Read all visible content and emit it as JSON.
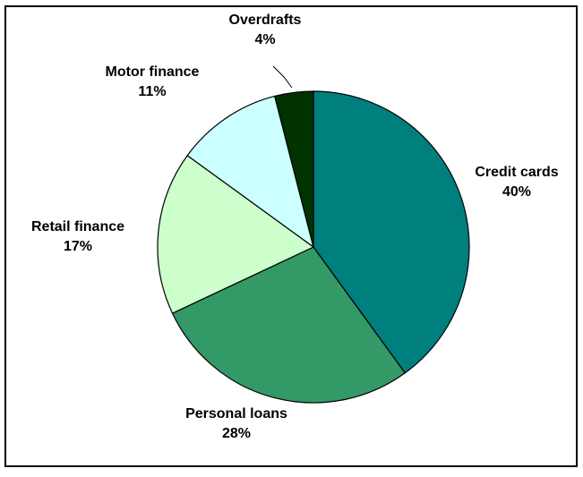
{
  "chart_data": {
    "type": "pie",
    "categories": [
      "Credit cards",
      "Personal loans",
      "Retail finance",
      "Motor finance",
      "Overdrafts"
    ],
    "values": [
      40,
      28,
      17,
      11,
      4
    ],
    "value_labels": [
      "40%",
      "28%",
      "17%",
      "11%",
      "4%"
    ],
    "colors": [
      "#007f7f",
      "#339966",
      "#ccffcc",
      "#ccffff",
      "#003300"
    ],
    "start": "12 o'clock",
    "direction": "clockwise",
    "legend": "none"
  }
}
